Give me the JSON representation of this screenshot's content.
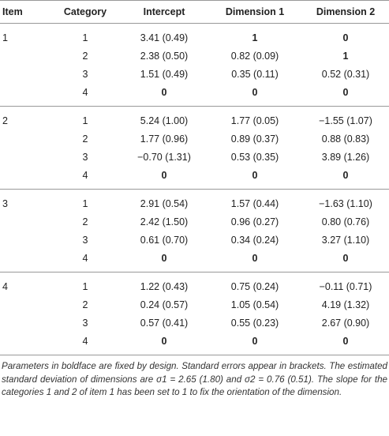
{
  "table": {
    "header": [
      "Item",
      "Category",
      "Intercept",
      "Dimension 1",
      "Dimension 2"
    ],
    "groups": [
      {
        "item": "1",
        "rows": [
          [
            {
              "text": "1"
            },
            {
              "text": "3.41 (0.49)"
            },
            {
              "text": "1",
              "bold": true
            },
            {
              "text": "0",
              "bold": true
            }
          ],
          [
            {
              "text": "2"
            },
            {
              "text": "2.38 (0.50)"
            },
            {
              "text": "0.82 (0.09)"
            },
            {
              "text": "1",
              "bold": true
            }
          ],
          [
            {
              "text": "3"
            },
            {
              "text": "1.51 (0.49)"
            },
            {
              "text": "0.35 (0.11)"
            },
            {
              "text": "0.52 (0.31)"
            }
          ],
          [
            {
              "text": "4"
            },
            {
              "text": "0",
              "bold": true
            },
            {
              "text": "0",
              "bold": true
            },
            {
              "text": "0",
              "bold": true
            }
          ]
        ]
      },
      {
        "item": "2",
        "rows": [
          [
            {
              "text": "1"
            },
            {
              "text": "5.24 (1.00)"
            },
            {
              "text": "1.77 (0.05)"
            },
            {
              "text": "−1.55 (1.07)"
            }
          ],
          [
            {
              "text": "2"
            },
            {
              "text": "1.77 (0.96)"
            },
            {
              "text": "0.89 (0.37)"
            },
            {
              "text": "0.88 (0.83)"
            }
          ],
          [
            {
              "text": "3"
            },
            {
              "text": "−0.70 (1.31)"
            },
            {
              "text": "0.53 (0.35)"
            },
            {
              "text": "3.89 (1.26)"
            }
          ],
          [
            {
              "text": "4"
            },
            {
              "text": "0",
              "bold": true
            },
            {
              "text": "0",
              "bold": true
            },
            {
              "text": "0",
              "bold": true
            }
          ]
        ]
      },
      {
        "item": "3",
        "rows": [
          [
            {
              "text": "1"
            },
            {
              "text": "2.91 (0.54)"
            },
            {
              "text": "1.57 (0.44)"
            },
            {
              "text": "−1.63 (1.10)"
            }
          ],
          [
            {
              "text": "2"
            },
            {
              "text": "2.42 (1.50)"
            },
            {
              "text": "0.96 (0.27)"
            },
            {
              "text": "0.80 (0.76)"
            }
          ],
          [
            {
              "text": "3"
            },
            {
              "text": "0.61 (0.70)"
            },
            {
              "text": "0.34 (0.24)"
            },
            {
              "text": "3.27 (1.10)"
            }
          ],
          [
            {
              "text": "4"
            },
            {
              "text": "0",
              "bold": true
            },
            {
              "text": "0",
              "bold": true
            },
            {
              "text": "0",
              "bold": true
            }
          ]
        ]
      },
      {
        "item": "4",
        "rows": [
          [
            {
              "text": "1"
            },
            {
              "text": "1.22 (0.43)"
            },
            {
              "text": "0.75 (0.24)"
            },
            {
              "text": "−0.11 (0.71)"
            }
          ],
          [
            {
              "text": "2"
            },
            {
              "text": "0.24 (0.57)"
            },
            {
              "text": "1.05 (0.54)"
            },
            {
              "text": "4.19 (1.32)"
            }
          ],
          [
            {
              "text": "3"
            },
            {
              "text": "0.57 (0.41)"
            },
            {
              "text": "0.55 (0.23)"
            },
            {
              "text": "2.67 (0.90)"
            }
          ],
          [
            {
              "text": "4"
            },
            {
              "text": "0",
              "bold": true
            },
            {
              "text": "0",
              "bold": true
            },
            {
              "text": "0",
              "bold": true
            }
          ]
        ]
      }
    ],
    "footnote": "Parameters in boldface are fixed by design. Standard errors appear in brackets. The estimated standard deviation of dimensions are σ1 = 2.65 (1.80) and σ2 = 0.76 (0.51). The slope for the categories 1 and 2 of item 1 has been set to 1 to fix the orientation of the dimension."
  }
}
